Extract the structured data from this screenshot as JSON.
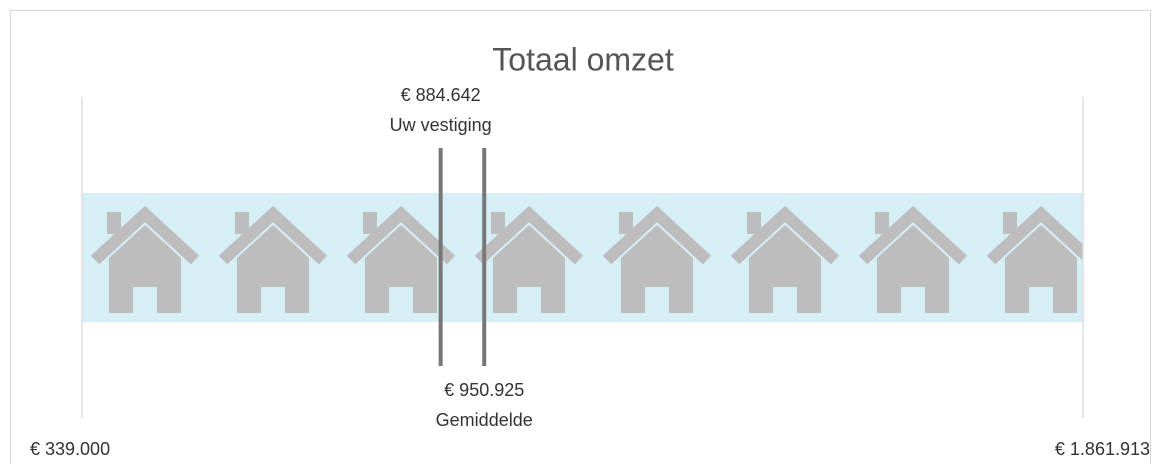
{
  "chart_data": {
    "type": "range-marker",
    "title": "Totaal omzet",
    "categories": [
      "Uw vestiging",
      "Gemiddelde"
    ],
    "values": [
      884642,
      950925
    ],
    "value_labels": [
      "€ 884.642",
      "€ 950.925"
    ],
    "xlim": [
      339000,
      1861913
    ],
    "xticks": [
      {
        "value": 339000,
        "label": "€ 339.000"
      },
      {
        "value": 1861913,
        "label": "€ 1.861.913"
      }
    ],
    "color": "#777777"
  }
}
